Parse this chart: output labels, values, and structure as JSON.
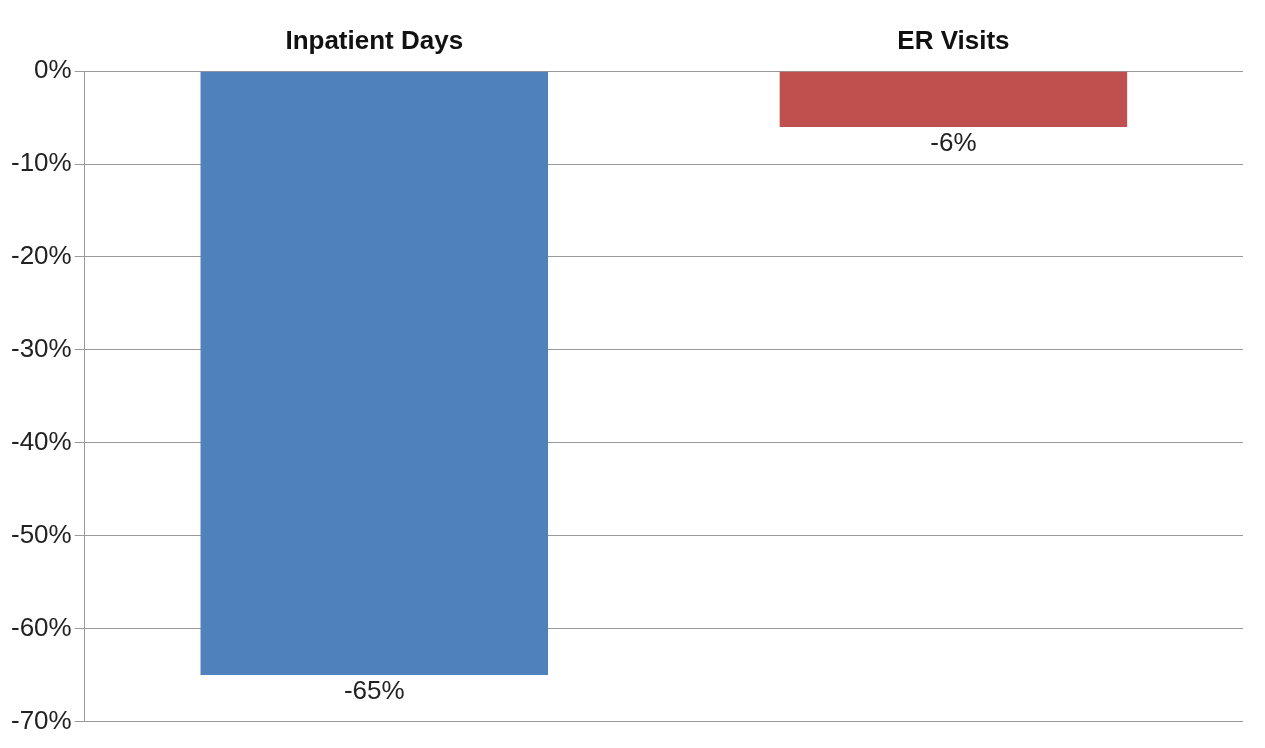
{
  "chart_data": {
    "type": "bar",
    "categories": [
      "Inpatient Days",
      "ER Visits"
    ],
    "colors": [
      "#4f81bd",
      "#c0504d"
    ],
    "values": [
      -65,
      -6
    ],
    "value_labels": [
      "-65%",
      "-6%"
    ],
    "ylim": [
      -70,
      0
    ],
    "yticks": [
      {
        "value": 0,
        "label": "0%"
      },
      {
        "value": -10,
        "label": "-10%"
      },
      {
        "value": -20,
        "label": "-20%"
      },
      {
        "value": -30,
        "label": "-30%"
      },
      {
        "value": -40,
        "label": "-40%"
      },
      {
        "value": -50,
        "label": "-50%"
      },
      {
        "value": -60,
        "label": "-60%"
      },
      {
        "value": -70,
        "label": "-70%"
      }
    ],
    "grid": "y",
    "legend": false
  }
}
